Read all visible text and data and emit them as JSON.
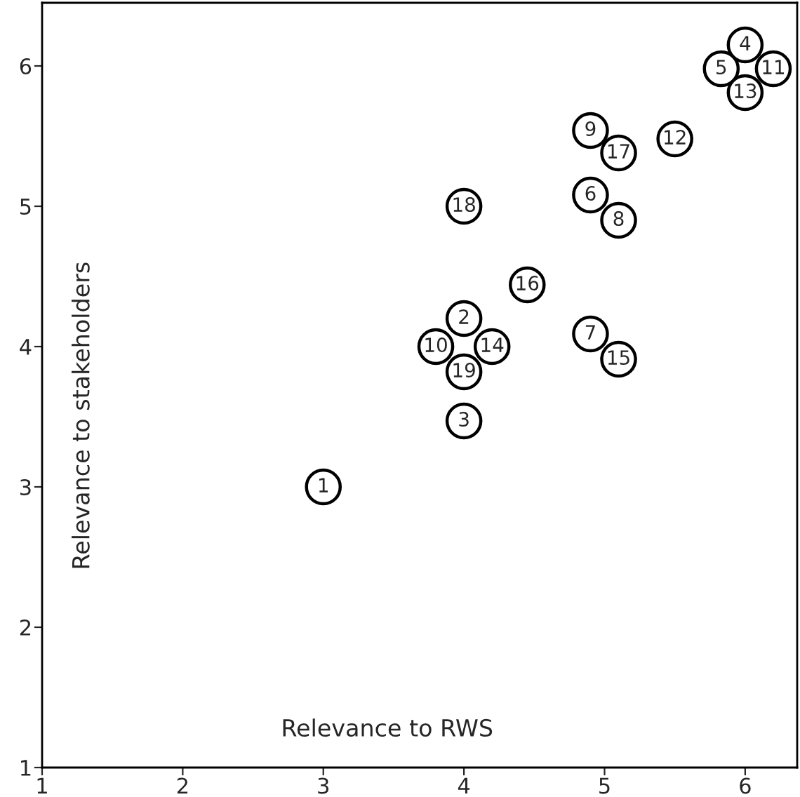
{
  "chart_data": {
    "type": "scatter",
    "xlabel": "Relevance to RWS",
    "ylabel": "Relevance to stakeholders",
    "x": [
      3.0,
      4.0,
      4.0,
      6.0,
      5.83,
      4.9,
      4.9,
      5.1,
      4.9,
      3.8,
      6.2,
      5.5,
      6.0,
      4.2,
      5.1,
      4.45,
      5.1,
      4.0,
      4.0
    ],
    "series": [
      {
        "color": "#000000",
        "values": [
          3.0,
          4.2,
          3.47,
          6.15,
          5.98,
          5.08,
          4.09,
          4.9,
          5.54,
          4.0,
          5.98,
          5.48,
          5.81,
          4.0,
          3.91,
          4.44,
          5.38,
          5.0,
          3.82
        ]
      }
    ],
    "annotations": [
      {
        "text": "1",
        "x": 3.0,
        "y": 3.0
      },
      {
        "text": "2",
        "x": 4.0,
        "y": 4.2
      },
      {
        "text": "3",
        "x": 4.0,
        "y": 3.47
      },
      {
        "text": "4",
        "x": 6.0,
        "y": 6.15
      },
      {
        "text": "5",
        "x": 5.83,
        "y": 5.98
      },
      {
        "text": "6",
        "x": 4.9,
        "y": 5.08
      },
      {
        "text": "7",
        "x": 4.9,
        "y": 4.09
      },
      {
        "text": "8",
        "x": 5.1,
        "y": 4.9
      },
      {
        "text": "9",
        "x": 4.9,
        "y": 5.54
      },
      {
        "text": "10",
        "x": 3.8,
        "y": 4.0
      },
      {
        "text": "11",
        "x": 6.2,
        "y": 5.98
      },
      {
        "text": "12",
        "x": 5.5,
        "y": 5.48
      },
      {
        "text": "13",
        "x": 6.0,
        "y": 5.81
      },
      {
        "text": "14",
        "x": 4.2,
        "y": 4.0
      },
      {
        "text": "15",
        "x": 5.1,
        "y": 3.91
      },
      {
        "text": "16",
        "x": 4.45,
        "y": 4.44
      },
      {
        "text": "17",
        "x": 5.1,
        "y": 5.38
      },
      {
        "text": "18",
        "x": 4.0,
        "y": 5.0
      },
      {
        "text": "19",
        "x": 4.0,
        "y": 3.82
      }
    ],
    "xlim": [
      1,
      6.37
    ],
    "ylim": [
      1,
      6.45
    ],
    "xticks": [
      1,
      2,
      3,
      4,
      5,
      6
    ],
    "yticks": [
      1,
      2,
      3,
      4,
      5,
      6
    ],
    "marker": "circle",
    "grid": false,
    "legend": false
  }
}
